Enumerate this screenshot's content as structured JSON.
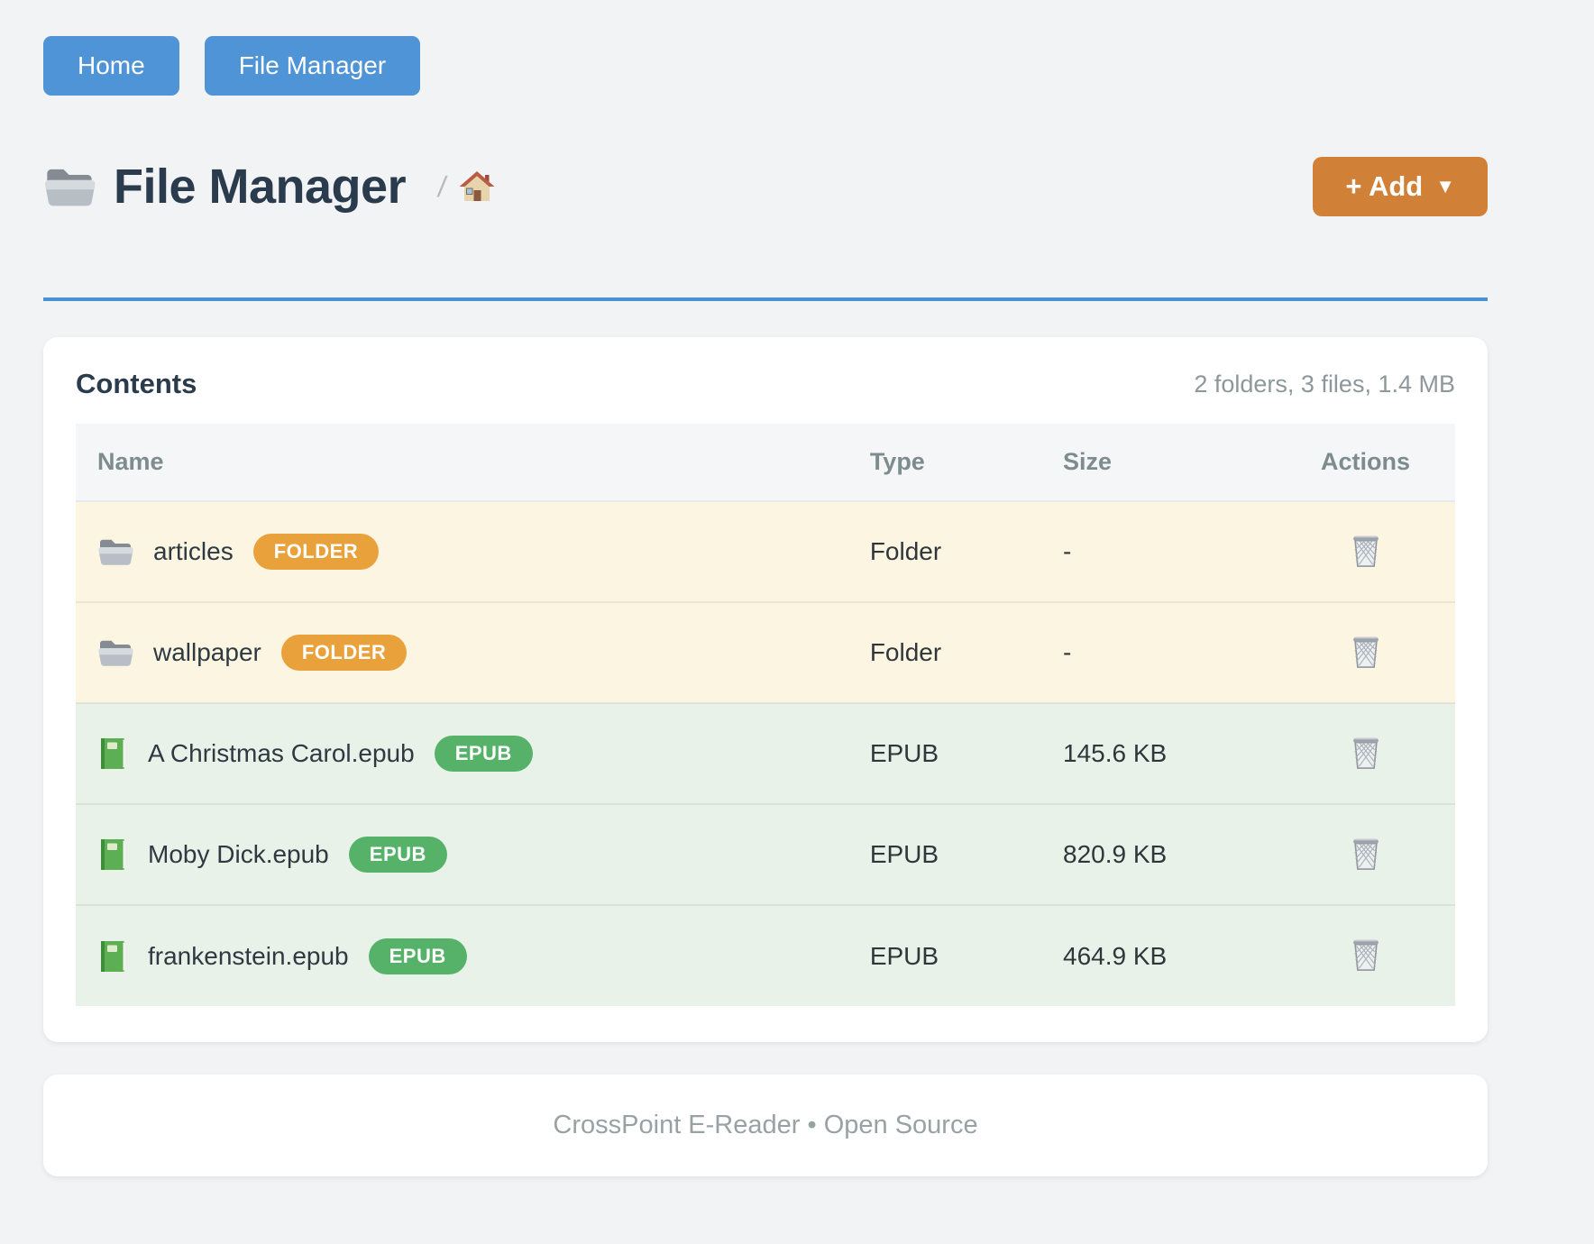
{
  "nav": {
    "home_label": "Home",
    "file_manager_label": "File Manager"
  },
  "header": {
    "title": "File Manager",
    "title_icon": "folder-icon",
    "breadcrumb_separator": "/",
    "breadcrumb_home_icon": "house-icon",
    "add_button": {
      "label": "+ Add",
      "caret": "▼",
      "caret_icon": "caret-down-icon"
    }
  },
  "colors": {
    "nav_blue": "#4f94d6",
    "rule_blue": "#4a91d6",
    "add_orange": "#d08137",
    "badge_folder": "#e9a23b",
    "badge_epub": "#56b269",
    "row_folder_bg": "#fcf5e2",
    "row_epub_bg": "#e9f2e9"
  },
  "contents": {
    "title": "Contents",
    "summary": "2 folders, 3 files, 1.4 MB",
    "columns": [
      "Name",
      "Type",
      "Size",
      "Actions"
    ],
    "rows": [
      {
        "kind": "folder",
        "icon": "folder-icon",
        "name": "articles",
        "badge": "FOLDER",
        "type": "Folder",
        "size": "-",
        "action_icon": "trash-icon"
      },
      {
        "kind": "folder",
        "icon": "folder-icon",
        "name": "wallpaper",
        "badge": "FOLDER",
        "type": "Folder",
        "size": "-",
        "action_icon": "trash-icon"
      },
      {
        "kind": "epub",
        "icon": "book-icon",
        "name": "A Christmas Carol.epub",
        "badge": "EPUB",
        "type": "EPUB",
        "size": "145.6 KB",
        "action_icon": "trash-icon"
      },
      {
        "kind": "epub",
        "icon": "book-icon",
        "name": "Moby Dick.epub",
        "badge": "EPUB",
        "type": "EPUB",
        "size": "820.9 KB",
        "action_icon": "trash-icon"
      },
      {
        "kind": "epub",
        "icon": "book-icon",
        "name": "frankenstein.epub",
        "badge": "EPUB",
        "type": "EPUB",
        "size": "464.9 KB",
        "action_icon": "trash-icon"
      }
    ]
  },
  "footer": {
    "text": "CrossPoint E-Reader • Open Source"
  }
}
